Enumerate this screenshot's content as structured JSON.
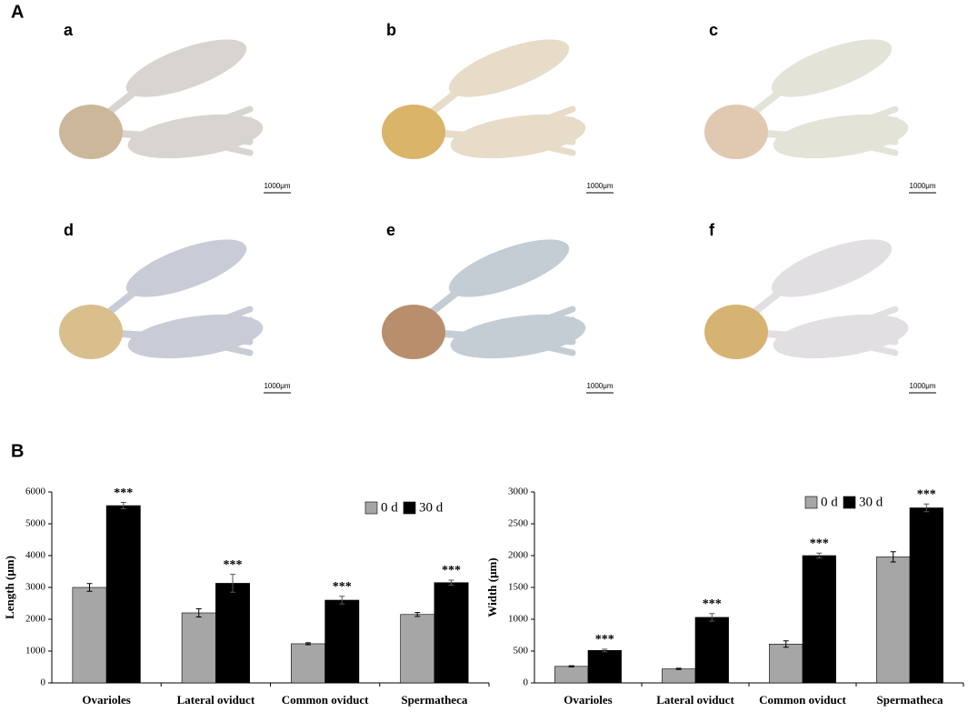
{
  "panel_labels": [
    "A",
    "B"
  ],
  "photos": [
    {
      "label": "a",
      "scale": "1000μm"
    },
    {
      "label": "b",
      "scale": "1000μm"
    },
    {
      "label": "c",
      "scale": "1000μm"
    },
    {
      "label": "d",
      "scale": "1000μm"
    },
    {
      "label": "e",
      "scale": "1000μm"
    },
    {
      "label": "f",
      "scale": "1000μm"
    }
  ],
  "chart_data": [
    {
      "type": "bar",
      "y_label": "Length (μm)",
      "categories": [
        "Ovarioles",
        "Lateral oviduct",
        "Common oviduct",
        "Spermatheca"
      ],
      "series": [
        {
          "name": "0 d",
          "color": "#a6a6a6",
          "values": [
            3000,
            2200,
            1230,
            2150
          ],
          "errors": [
            120,
            130,
            30,
            60
          ]
        },
        {
          "name": "30 d",
          "color": "#000000",
          "values": [
            5570,
            3130,
            2600,
            3150
          ],
          "errors": [
            100,
            280,
            120,
            80
          ]
        }
      ],
      "significance": [
        "***",
        "***",
        "***",
        "***"
      ],
      "ylim": [
        0,
        6000
      ],
      "yticks": [
        0,
        1000,
        2000,
        3000,
        4000,
        5000,
        6000
      ]
    },
    {
      "type": "bar",
      "y_label": "Width (μm)",
      "categories": [
        "Ovarioles",
        "Lateral oviduct",
        "Common oviduct",
        "Spermatheca"
      ],
      "series": [
        {
          "name": "0 d",
          "color": "#a6a6a6",
          "values": [
            260,
            220,
            610,
            1980
          ],
          "errors": [
            10,
            10,
            50,
            80
          ]
        },
        {
          "name": "30 d",
          "color": "#000000",
          "values": [
            510,
            1030,
            2000,
            2750
          ],
          "errors": [
            20,
            60,
            40,
            60
          ]
        }
      ],
      "significance": [
        "***",
        "***",
        "***",
        "***"
      ],
      "ylim": [
        0,
        3000
      ],
      "yticks": [
        0,
        500,
        1000,
        1500,
        2000,
        2500,
        3000
      ]
    }
  ]
}
